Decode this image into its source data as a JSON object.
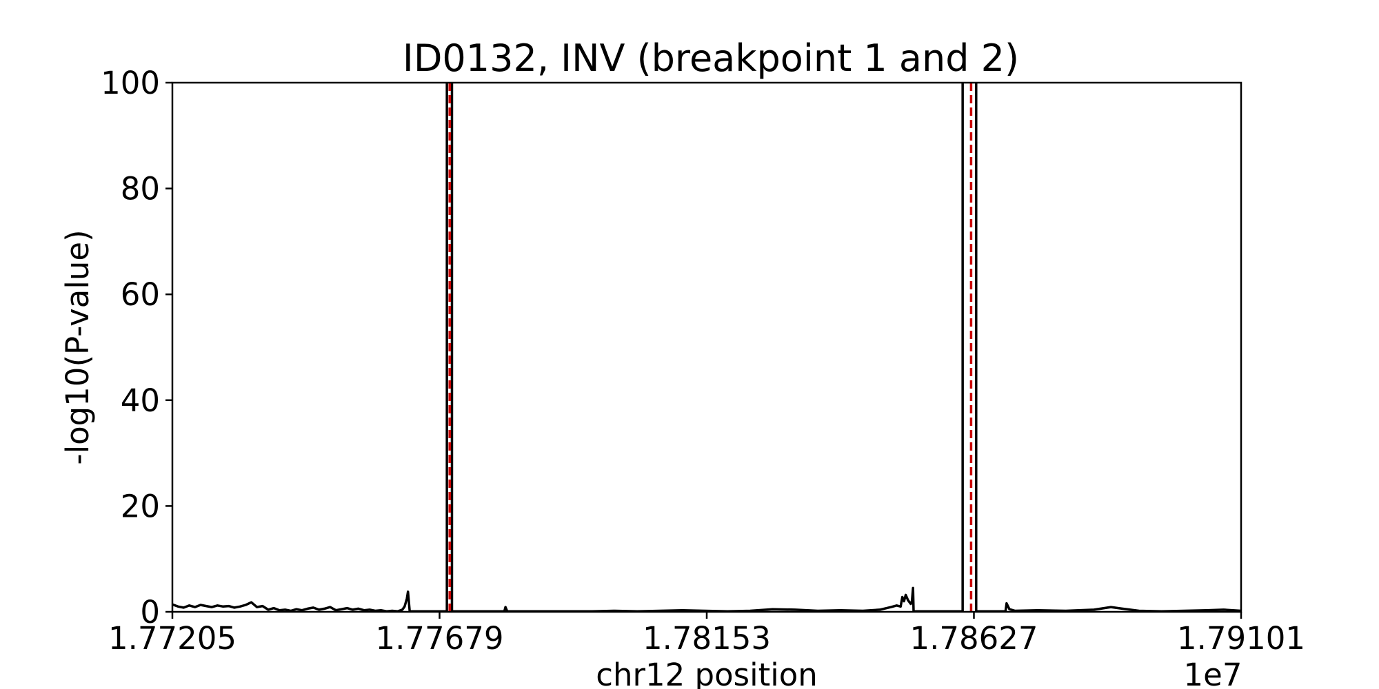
{
  "chart_data": {
    "type": "line",
    "title": "ID0132, INV (breakpoint 1 and 2)",
    "xlabel": "chr12 position",
    "ylabel": "-log10(P-value)",
    "x_offset_label": "1e7",
    "xlim": [
      1.77205,
      1.79101
    ],
    "ylim": [
      0,
      100
    ],
    "x_ticks": [
      1.77205,
      1.77679,
      1.78153,
      1.78627,
      1.79101
    ],
    "x_tick_labels": [
      "1.77205",
      "1.77679",
      "1.78153",
      "1.78627",
      "1.79101"
    ],
    "y_ticks": [
      0,
      20,
      40,
      60,
      80,
      100
    ],
    "y_tick_labels": [
      "0",
      "20",
      "40",
      "60",
      "80",
      "100"
    ],
    "grid": false,
    "colors": {
      "series": "#000000",
      "breakpoint_interval": "#000000",
      "breakpoint_dashed": "#cc0000"
    },
    "breakpoint_intervals": [
      {
        "left": 1.77692,
        "right": 1.77701
      },
      {
        "left": 1.78607,
        "right": 1.78631
      }
    ],
    "breakpoints_dashed": [
      1.77697,
      1.78622
    ],
    "series": [
      {
        "x": [
          1.77205,
          1.77215,
          1.77225,
          1.77235,
          1.77245,
          1.77255,
          1.77265,
          1.77275,
          1.77285,
          1.77295,
          1.77305,
          1.77315,
          1.77325,
          1.77335,
          1.77345,
          1.77355,
          1.77365,
          1.77375,
          1.77385,
          1.77395,
          1.77405,
          1.77415,
          1.77425,
          1.77435,
          1.77445,
          1.77455,
          1.77465,
          1.77475,
          1.77485,
          1.77495,
          1.77505,
          1.77515,
          1.77525,
          1.77535,
          1.77545,
          1.77555,
          1.77565,
          1.77575,
          1.77585,
          1.77595,
          1.77605,
          1.77613,
          1.77617,
          1.77621,
          1.77623,
          1.77626,
          1.7764,
          1.7766,
          1.7768,
          1.77692
        ],
        "y": [
          1.4,
          1.0,
          0.8,
          1.2,
          0.9,
          1.3,
          1.1,
          0.9,
          1.2,
          1.0,
          1.1,
          0.8,
          1.0,
          1.3,
          1.8,
          0.9,
          1.1,
          0.4,
          0.7,
          0.3,
          0.4,
          0.2,
          0.5,
          0.3,
          0.6,
          0.8,
          0.4,
          0.6,
          0.9,
          0.3,
          0.5,
          0.7,
          0.4,
          0.6,
          0.3,
          0.4,
          0.2,
          0.3,
          0.1,
          0.2,
          0.1,
          0.4,
          1.0,
          2.5,
          3.8,
          0.1,
          0.1,
          0.1,
          0.1,
          0.1
        ]
      },
      {
        "x": [
          1.77701,
          1.7772,
          1.77745,
          1.77794,
          1.77796,
          1.77799,
          1.7783,
          1.7787,
          1.7791,
          1.7795,
          1.7799,
          1.7803,
          1.7807,
          1.7811,
          1.7815,
          1.7819,
          1.7823,
          1.7827,
          1.7831,
          1.7835,
          1.7839,
          1.7843,
          1.7846,
          1.7848,
          1.7849,
          1.78497,
          1.785,
          1.78503,
          1.78506,
          1.7851,
          1.78515,
          1.78517,
          1.78519,
          1.7852,
          1.78535,
          1.7856,
          1.7859,
          1.78607
        ],
        "y": [
          0.1,
          0.1,
          0.1,
          0.1,
          0.9,
          0.1,
          0.1,
          0.1,
          0.1,
          0.1,
          0.2,
          0.1,
          0.2,
          0.3,
          0.2,
          0.1,
          0.2,
          0.5,
          0.4,
          0.2,
          0.3,
          0.2,
          0.4,
          0.9,
          1.2,
          1.0,
          2.8,
          2.0,
          3.2,
          2.2,
          1.5,
          2.0,
          4.5,
          0.1,
          0.1,
          0.1,
          0.1,
          0.1
        ]
      },
      {
        "x": [
          1.78631,
          1.7866,
          1.78683,
          1.78685,
          1.7869,
          1.787,
          1.7874,
          1.7879,
          1.7884,
          1.7887,
          1.7889,
          1.7892,
          1.7896,
          1.79,
          1.7904,
          1.7907,
          1.79101
        ],
        "y": [
          0.1,
          0.1,
          0.1,
          1.6,
          0.5,
          0.2,
          0.3,
          0.2,
          0.4,
          0.9,
          0.6,
          0.2,
          0.1,
          0.2,
          0.3,
          0.4,
          0.2
        ]
      }
    ]
  }
}
